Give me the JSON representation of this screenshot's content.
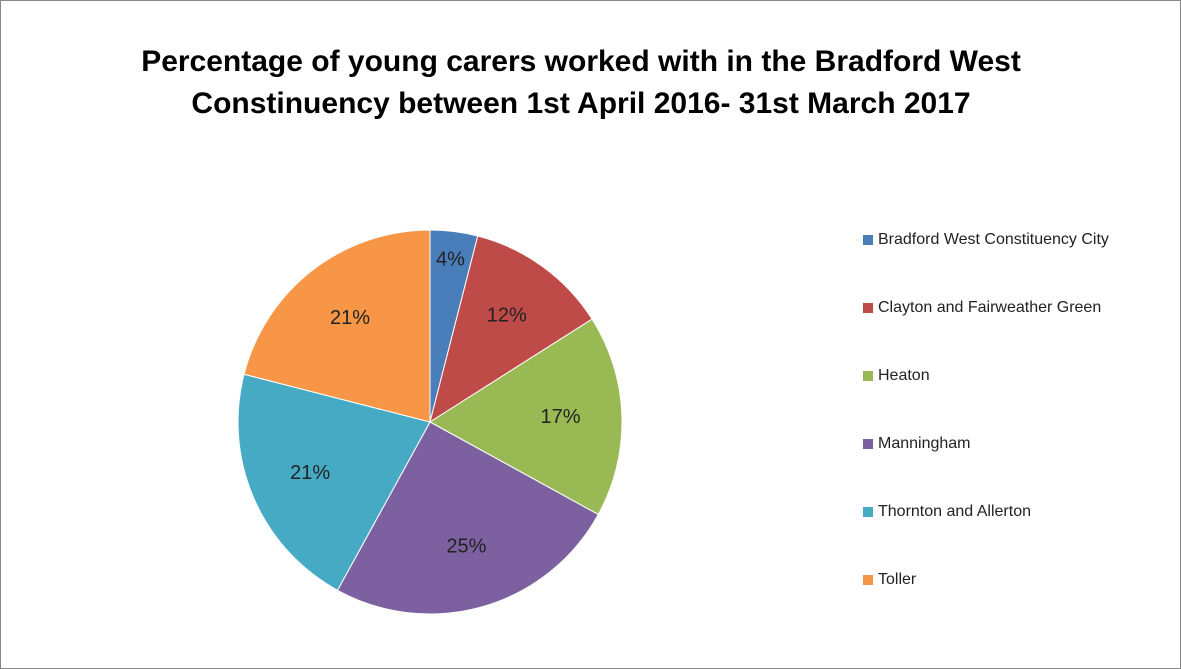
{
  "chart_data": {
    "type": "pie",
    "title": "Percentage of young carers worked with in the Bradford West Constinuency between 1st April 2016- 31st March 2017",
    "categories": [
      "Bradford West Constituency City",
      "Clayton and Fairweather Green",
      "Heaton",
      "Manningham",
      "Thornton and Allerton",
      "Toller"
    ],
    "values": [
      4,
      12,
      17,
      25,
      21,
      21
    ],
    "value_labels": [
      "4%",
      "12%",
      "17%",
      "25%",
      "21%",
      "21%"
    ],
    "colors": [
      "#4a7ebb",
      "#be4b48",
      "#98b954",
      "#7d60a0",
      "#46aac5",
      "#f79646"
    ],
    "legend": "right"
  }
}
